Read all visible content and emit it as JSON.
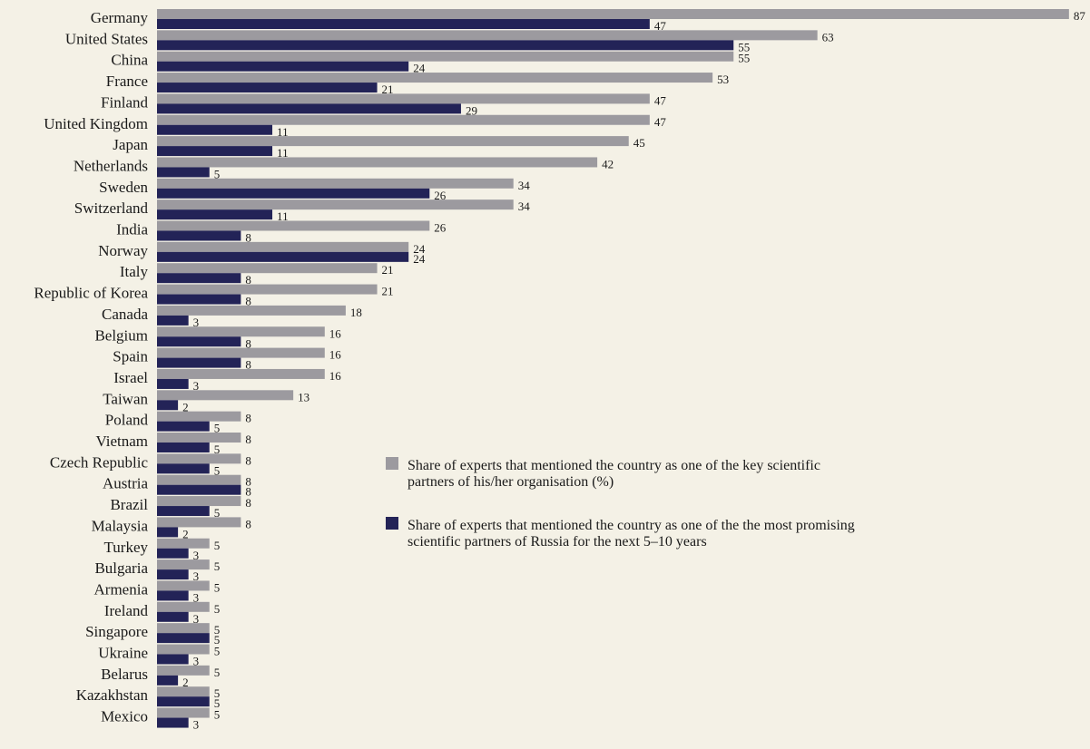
{
  "chart_data": {
    "type": "bar",
    "orientation": "horizontal",
    "grid": false,
    "legend_position": "center-right",
    "categories": [
      "Germany",
      "United States",
      "China",
      "France",
      "Finland",
      "United Kingdom",
      "Japan",
      "Netherlands",
      "Sweden",
      "Switzerland",
      "India",
      "Norway",
      "Italy",
      "Republic of Korea",
      "Canada",
      "Belgium",
      "Spain",
      "Israel",
      "Taiwan",
      "Poland",
      "Vietnam",
      "Czech Republic",
      "Austria",
      "Brazil",
      "Malaysia",
      "Turkey",
      "Bulgaria",
      "Armenia",
      "Ireland",
      "Singapore",
      "Ukraine",
      "Belarus",
      "Kazakhstan",
      "Mexico"
    ],
    "series": [
      {
        "name": "Share of experts that mentioned the country as one of the key scientific partners of his/her organisation (%)",
        "legend_lines": [
          "Share of experts that mentioned the country as one of the key scientific",
          "partners of his/her organisation (%)"
        ],
        "color": "#9c9a9f",
        "values": [
          87,
          63,
          55,
          53,
          47,
          47,
          45,
          42,
          34,
          34,
          26,
          24,
          21,
          21,
          18,
          16,
          16,
          16,
          13,
          8,
          8,
          8,
          8,
          8,
          8,
          5,
          5,
          5,
          5,
          5,
          5,
          5,
          5,
          5
        ]
      },
      {
        "name": "Share of experts that mentioned the country as one of the the most promising scientific partners of Russia for the next 5–10 years",
        "legend_lines": [
          "Share of experts that mentioned the country as one of the the most promising",
          "scientific partners of Russia for the next 5–10 years"
        ],
        "color": "#232357",
        "values": [
          47,
          55,
          24,
          21,
          29,
          11,
          11,
          5,
          26,
          11,
          8,
          24,
          8,
          8,
          3,
          8,
          8,
          3,
          2,
          5,
          5,
          5,
          8,
          5,
          2,
          3,
          3,
          3,
          3,
          5,
          3,
          2,
          5,
          3
        ]
      }
    ]
  }
}
